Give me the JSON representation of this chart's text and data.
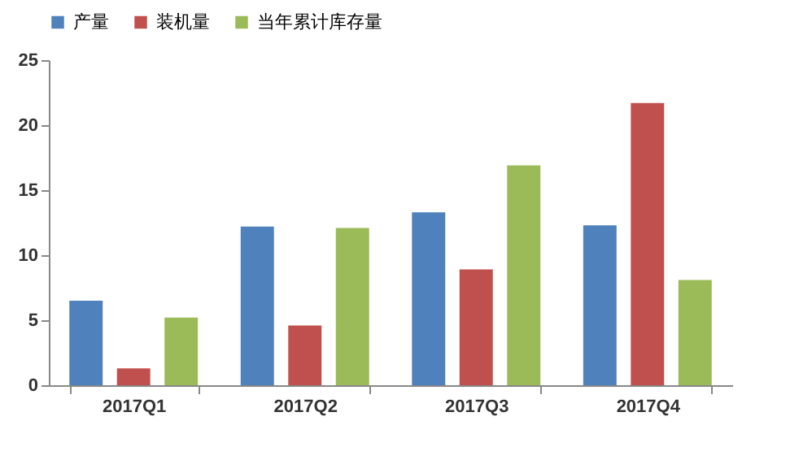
{
  "chart_data": {
    "type": "bar",
    "categories": [
      "2017Q1",
      "2017Q2",
      "2017Q3",
      "2017Q4"
    ],
    "series": [
      {
        "name": "产量",
        "color": "#4f81bd",
        "values": [
          6.5,
          12.2,
          13.3,
          12.3
        ]
      },
      {
        "name": "装机量",
        "color": "#c0504d",
        "values": [
          1.3,
          4.6,
          8.9,
          21.7
        ]
      },
      {
        "name": "当年累计库存量",
        "color": "#9bbb59",
        "values": [
          5.2,
          12.1,
          16.9,
          8.1
        ]
      }
    ],
    "ylim": [
      0,
      25
    ],
    "yticks": [
      0,
      5,
      10,
      15,
      20,
      25
    ],
    "grid": false,
    "legend": "top"
  }
}
